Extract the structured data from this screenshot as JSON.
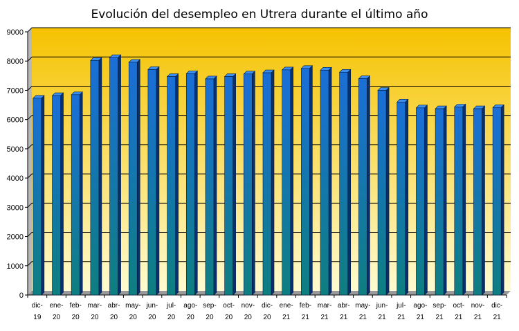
{
  "chart_data": {
    "type": "bar",
    "title": "Evolución del desempleo en Utrera durante el último año",
    "xlabel": "",
    "ylabel": "",
    "ylim": [
      0,
      9000
    ],
    "yticks": [
      "0",
      "1000",
      "2000",
      "3000",
      "4000",
      "5000",
      "6000",
      "7000",
      "8000",
      "9000"
    ],
    "grid": true,
    "categories": [
      [
        "dic-",
        "19"
      ],
      [
        "ene-",
        "20"
      ],
      [
        "feb-",
        "20"
      ],
      [
        "mar-",
        "20"
      ],
      [
        "abr-",
        "20"
      ],
      [
        "may-",
        "20"
      ],
      [
        "jun-",
        "20"
      ],
      [
        "jul-",
        "20"
      ],
      [
        "ago-",
        "20"
      ],
      [
        "sep-",
        "20"
      ],
      [
        "oct-",
        "20"
      ],
      [
        "nov-",
        "20"
      ],
      [
        "dic-",
        "20"
      ],
      [
        "ene-",
        "21"
      ],
      [
        "feb-",
        "21"
      ],
      [
        "mar-",
        "21"
      ],
      [
        "abr-",
        "21"
      ],
      [
        "may-",
        "21"
      ],
      [
        "jun-",
        "21"
      ],
      [
        "jul-",
        "21"
      ],
      [
        "ago-",
        "21"
      ],
      [
        "sep-",
        "21"
      ],
      [
        "oct-",
        "21"
      ],
      [
        "nov-",
        "21"
      ],
      [
        "dic-",
        "21"
      ]
    ],
    "values": [
      6730,
      6820,
      6850,
      8020,
      8120,
      7960,
      7710,
      7470,
      7570,
      7390,
      7470,
      7560,
      7600,
      7700,
      7750,
      7690,
      7620,
      7400,
      7000,
      6600,
      6400,
      6370,
      6430,
      6370,
      6410
    ],
    "colors": {
      "bar_top": "#1a6fd8",
      "bar_bottom": "#0e7f80",
      "bg_top": "#f5c200",
      "bg_bottom": "#fffbd0"
    }
  }
}
